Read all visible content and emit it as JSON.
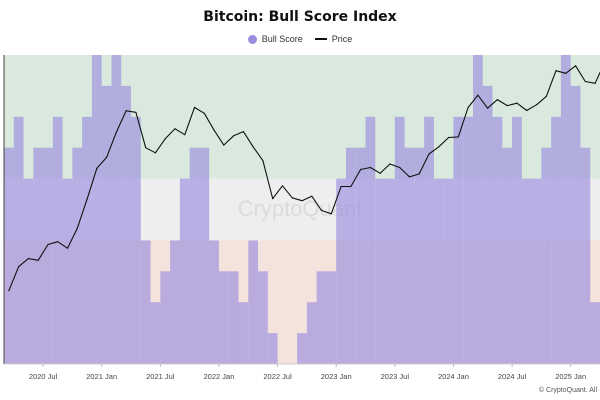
{
  "chart_data": {
    "type": "area",
    "title": "Bitcoin: Bull Score Index",
    "watermark": "CryptoQuant",
    "credit": "© CryptoQuant. All",
    "x_ticks": [
      "2020 Jul",
      "2021 Jan",
      "2021 Jul",
      "2022 Jan",
      "2022 Jul",
      "2023 Jan",
      "2023 Jul",
      "2024 Jan",
      "2024 Jul",
      "2025 Jan"
    ],
    "x_range": [
      "2020-03",
      "2025-04"
    ],
    "score_range": [
      0,
      100
    ],
    "zones": [
      {
        "from": 60,
        "to": 100,
        "color": "#d9e9dd"
      },
      {
        "from": 40,
        "to": 60,
        "color": "#eeeeee"
      },
      {
        "from": 0,
        "to": 40,
        "color": "#f3e3dc"
      }
    ],
    "colors": {
      "bull_score": "#9b8edf",
      "price": "#111111"
    },
    "series": [
      {
        "name": "Bull Score",
        "kind": "step-area",
        "x": [
          "2020-03",
          "2020-04",
          "2020-05",
          "2020-06",
          "2020-07",
          "2020-08",
          "2020-09",
          "2020-10",
          "2020-11",
          "2020-12",
          "2021-01",
          "2021-02",
          "2021-03",
          "2021-04",
          "2021-05",
          "2021-06",
          "2021-07",
          "2021-08",
          "2021-09",
          "2021-10",
          "2021-11",
          "2021-12",
          "2022-01",
          "2022-02",
          "2022-03",
          "2022-04",
          "2022-05",
          "2022-06",
          "2022-07",
          "2022-08",
          "2022-09",
          "2022-10",
          "2022-11",
          "2022-12",
          "2023-01",
          "2023-02",
          "2023-03",
          "2023-04",
          "2023-05",
          "2023-06",
          "2023-07",
          "2023-08",
          "2023-09",
          "2023-10",
          "2023-11",
          "2023-12",
          "2024-01",
          "2024-02",
          "2024-03",
          "2024-04",
          "2024-05",
          "2024-06",
          "2024-07",
          "2024-08",
          "2024-09",
          "2024-10",
          "2024-11",
          "2024-12",
          "2025-01",
          "2025-02",
          "2025-03",
          "2025-04"
        ],
        "values": [
          70,
          80,
          60,
          70,
          70,
          80,
          60,
          70,
          80,
          100,
          90,
          100,
          90,
          80,
          40,
          20,
          30,
          40,
          60,
          70,
          70,
          40,
          30,
          30,
          20,
          40,
          30,
          10,
          0,
          0,
          10,
          20,
          30,
          30,
          60,
          70,
          70,
          80,
          60,
          60,
          80,
          70,
          70,
          80,
          60,
          60,
          80,
          80,
          100,
          90,
          80,
          70,
          80,
          60,
          60,
          70,
          80,
          100,
          90,
          70,
          20,
          20
        ]
      },
      {
        "name": "Price",
        "kind": "line",
        "x": [
          "2020-03",
          "2020-04",
          "2020-05",
          "2020-06",
          "2020-07",
          "2020-08",
          "2020-09",
          "2020-10",
          "2020-11",
          "2020-12",
          "2021-01",
          "2021-02",
          "2021-03",
          "2021-04",
          "2021-05",
          "2021-06",
          "2021-07",
          "2021-08",
          "2021-09",
          "2021-10",
          "2021-11",
          "2021-12",
          "2022-01",
          "2022-02",
          "2022-03",
          "2022-04",
          "2022-05",
          "2022-06",
          "2022-07",
          "2022-08",
          "2022-09",
          "2022-10",
          "2022-11",
          "2022-12",
          "2023-01",
          "2023-02",
          "2023-03",
          "2023-04",
          "2023-05",
          "2023-06",
          "2023-07",
          "2023-08",
          "2023-09",
          "2023-10",
          "2023-11",
          "2023-12",
          "2024-01",
          "2024-02",
          "2024-03",
          "2024-04",
          "2024-05",
          "2024-06",
          "2024-07",
          "2024-08",
          "2024-09",
          "2024-10",
          "2024-11",
          "2024-12",
          "2025-01",
          "2025-02",
          "2025-03",
          "2025-04"
        ],
        "values": [
          6400,
          8600,
          9500,
          9300,
          11300,
          11700,
          10800,
          13800,
          19700,
          28900,
          33100,
          45200,
          58800,
          57700,
          37300,
          35000,
          41600,
          47100,
          43800,
          61300,
          57000,
          46300,
          38500,
          43200,
          45500,
          37700,
          31800,
          19900,
          23300,
          20100,
          19400,
          20500,
          17200,
          16500,
          23100,
          23100,
          28500,
          29200,
          27200,
          30500,
          29200,
          26000,
          27000,
          34500,
          37700,
          42300,
          42600,
          61200,
          71300,
          60700,
          67500,
          62700,
          64600,
          59000,
          63300,
          70200,
          96400,
          93400,
          102400,
          84400,
          82500,
          94200
        ]
      }
    ]
  }
}
